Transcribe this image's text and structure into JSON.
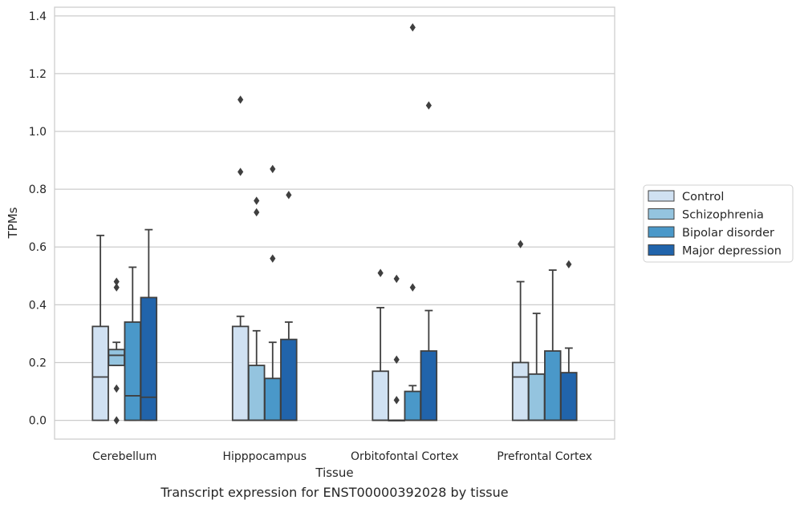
{
  "caption": "Transcript expression for ENST00000392028 by tissue",
  "chart_data": {
    "type": "box",
    "xlabel": "Tissue",
    "ylabel": "TPMs",
    "ylim": [
      -0.065,
      1.43
    ],
    "yticks": [
      0.0,
      0.2,
      0.4,
      0.6,
      0.8,
      1.0,
      1.2,
      1.4
    ],
    "ytick_labels": [
      "0.0",
      "0.2",
      "0.4",
      "0.6",
      "0.8",
      "1.0",
      "1.2",
      "1.4"
    ],
    "grid": "horizontal",
    "legend_placement": "outside right",
    "categories": [
      "Cerebellum",
      "Hipppocampus",
      "Orbitofontal Cortex",
      "Prefrontal Cortex"
    ],
    "series": [
      {
        "name": "Control",
        "color": "#d0e1f2",
        "boxes": [
          {
            "whislo": 0.0,
            "q1": 0.0,
            "med": 0.15,
            "q3": 0.325,
            "whishi": 0.64,
            "fliers": []
          },
          {
            "whislo": 0.0,
            "q1": 0.0,
            "med": 0.0,
            "q3": 0.325,
            "whishi": 0.36,
            "fliers": [
              1.11,
              0.86
            ]
          },
          {
            "whislo": 0.0,
            "q1": 0.0,
            "med": 0.0,
            "q3": 0.17,
            "whishi": 0.39,
            "fliers": [
              0.51
            ]
          },
          {
            "whislo": 0.0,
            "q1": 0.0,
            "med": 0.15,
            "q3": 0.2,
            "whishi": 0.48,
            "fliers": [
              0.61
            ]
          }
        ]
      },
      {
        "name": "Schizophrenia",
        "color": "#94c4df",
        "boxes": [
          {
            "whislo": 0.19,
            "q1": 0.19,
            "med": 0.225,
            "q3": 0.245,
            "whishi": 0.27,
            "fliers": [
              0.48,
              0.46,
              0.11,
              0.0
            ]
          },
          {
            "whislo": 0.0,
            "q1": 0.0,
            "med": 0.0,
            "q3": 0.19,
            "whishi": 0.31,
            "fliers": [
              0.76,
              0.72
            ]
          },
          {
            "whislo": 0.0,
            "q1": 0.0,
            "med": 0.0,
            "q3": 0.0,
            "whishi": 0.0,
            "fliers": [
              0.49,
              0.21,
              0.07
            ]
          },
          {
            "whislo": 0.0,
            "q1": 0.0,
            "med": 0.0,
            "q3": 0.16,
            "whishi": 0.37,
            "fliers": []
          }
        ]
      },
      {
        "name": "Bipolar disorder",
        "color": "#4a98c9",
        "boxes": [
          {
            "whislo": 0.0,
            "q1": 0.0,
            "med": 0.085,
            "q3": 0.34,
            "whishi": 0.53,
            "fliers": []
          },
          {
            "whislo": 0.0,
            "q1": 0.0,
            "med": 0.0,
            "q3": 0.145,
            "whishi": 0.27,
            "fliers": [
              0.87,
              0.56
            ]
          },
          {
            "whislo": 0.0,
            "q1": 0.0,
            "med": 0.0,
            "q3": 0.1,
            "whishi": 0.12,
            "fliers": [
              1.36,
              0.46
            ]
          },
          {
            "whislo": 0.0,
            "q1": 0.0,
            "med": 0.0,
            "q3": 0.24,
            "whishi": 0.52,
            "fliers": []
          }
        ]
      },
      {
        "name": "Major depression",
        "color": "#2164ab",
        "boxes": [
          {
            "whislo": 0.0,
            "q1": 0.0,
            "med": 0.08,
            "q3": 0.425,
            "whishi": 0.66,
            "fliers": []
          },
          {
            "whislo": 0.0,
            "q1": 0.0,
            "med": 0.0,
            "q3": 0.28,
            "whishi": 0.34,
            "fliers": [
              0.78
            ]
          },
          {
            "whislo": 0.0,
            "q1": 0.0,
            "med": 0.0,
            "q3": 0.24,
            "whishi": 0.38,
            "fliers": [
              1.09
            ]
          },
          {
            "whislo": 0.0,
            "q1": 0.0,
            "med": 0.0,
            "q3": 0.165,
            "whishi": 0.25,
            "fliers": [
              0.54
            ]
          }
        ]
      }
    ]
  }
}
